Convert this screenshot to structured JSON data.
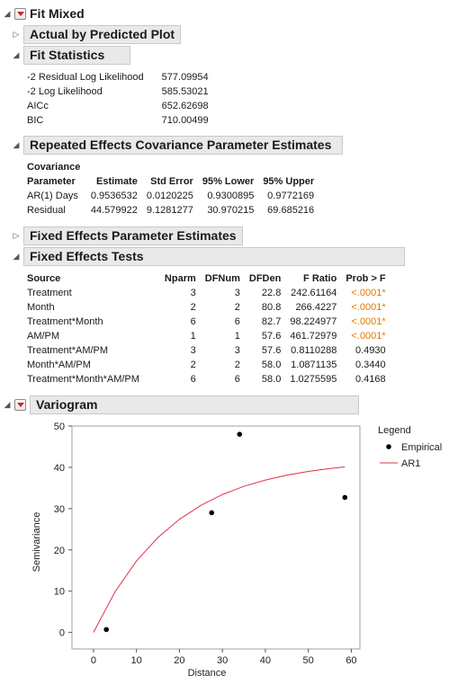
{
  "report": {
    "title": "Fit Mixed",
    "actual_by_predicted": "Actual by Predicted Plot",
    "fit_statistics": {
      "title": "Fit Statistics",
      "rows": [
        {
          "label": "-2 Residual Log Likelihood",
          "value": "577.09954"
        },
        {
          "label": "-2 Log Likelihood",
          "value": "585.53021"
        },
        {
          "label": "AICc",
          "value": "652.62698"
        },
        {
          "label": "BIC",
          "value": "710.00499"
        }
      ]
    },
    "repeated_effects": {
      "title": "Repeated Effects Covariance Parameter Estimates",
      "header_top": "Covariance",
      "columns": [
        "Parameter",
        "Estimate",
        "Std Error",
        "95% Lower",
        "95% Upper"
      ],
      "rows": [
        [
          "AR(1) Days",
          "0.9536532",
          "0.0120225",
          "0.9300895",
          "0.9772169"
        ],
        [
          "Residual",
          "44.579922",
          "9.1281277",
          "30.970215",
          "69.685216"
        ]
      ]
    },
    "fixed_effects_params": "Fixed Effects Parameter Estimates",
    "fixed_effects_tests": {
      "title": "Fixed Effects Tests",
      "columns": [
        "Source",
        "Nparm",
        "DFNum",
        "DFDen",
        "F Ratio",
        "Prob > F"
      ],
      "rows": [
        [
          "Treatment",
          "3",
          "3",
          "22.8",
          "242.61164",
          "<.0001*"
        ],
        [
          "Month",
          "2",
          "2",
          "80.8",
          "266.4227",
          "<.0001*"
        ],
        [
          "Treatment*Month",
          "6",
          "6",
          "82.7",
          "98.224977",
          "<.0001*"
        ],
        [
          "AM/PM",
          "1",
          "1",
          "57.6",
          "461.72979",
          "<.0001*"
        ],
        [
          "Treatment*AM/PM",
          "3",
          "3",
          "57.6",
          "0.8110288",
          "0.4930"
        ],
        [
          "Month*AM/PM",
          "2",
          "2",
          "58.0",
          "1.0871135",
          "0.3440"
        ],
        [
          "Treatment*Month*AM/PM",
          "6",
          "6",
          "58.0",
          "1.0275595",
          "0.4168"
        ]
      ]
    },
    "variogram": {
      "title": "Variogram"
    }
  },
  "chart_data": {
    "type": "scatter",
    "xlabel": "Distance",
    "ylabel": "Semivariance",
    "xlim": [
      -5,
      62
    ],
    "ylim": [
      -4,
      50
    ],
    "xticks": [
      0,
      10,
      20,
      30,
      40,
      50,
      60
    ],
    "yticks": [
      0,
      10,
      20,
      30,
      40,
      50
    ],
    "grid": false,
    "legend": {
      "title": "Legend",
      "position": "right",
      "entries": [
        "Empirical",
        "AR1"
      ]
    },
    "series": [
      {
        "name": "Empirical",
        "kind": "points",
        "color": "#000000",
        "x": [
          3,
          27.5,
          34,
          58.5
        ],
        "y": [
          0.7,
          29,
          48,
          32.7
        ]
      },
      {
        "name": "AR1",
        "kind": "line",
        "color": "#e0304a",
        "x": [
          0,
          5,
          10,
          15,
          20,
          25,
          30,
          35,
          40,
          45,
          50,
          55,
          58.5
        ],
        "y": [
          0,
          9.8,
          17.3,
          23.0,
          27.4,
          30.8,
          33.4,
          35.4,
          36.9,
          38.1,
          39.0,
          39.7,
          40.1
        ]
      }
    ]
  }
}
